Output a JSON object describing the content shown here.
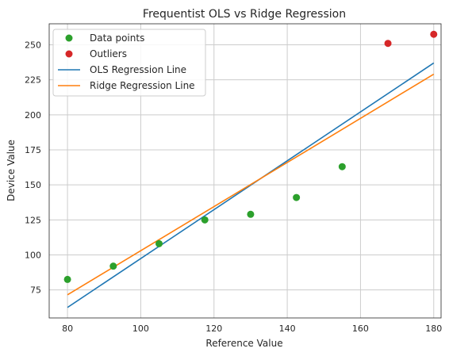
{
  "chart_data": {
    "type": "scatter",
    "title": "Frequentist OLS vs Ridge Regression",
    "xlabel": "Reference Value",
    "ylabel": "Device Value",
    "xlim": [
      75,
      182
    ],
    "ylim": [
      55,
      265
    ],
    "xticks": [
      80,
      100,
      120,
      140,
      160,
      180
    ],
    "yticks": [
      75,
      100,
      125,
      150,
      175,
      200,
      225,
      250
    ],
    "grid": true,
    "legend_position": "top-left",
    "series": [
      {
        "name": "Data points",
        "kind": "scatter",
        "color": "#2ca02c",
        "x": [
          80,
          92.5,
          105,
          117.5,
          130,
          142.5,
          155
        ],
        "y": [
          82.5,
          92,
          108,
          125,
          129,
          141,
          163
        ]
      },
      {
        "name": "Outliers",
        "kind": "scatter",
        "color": "#d62728",
        "x": [
          167.5,
          180
        ],
        "y": [
          251,
          257.5
        ]
      },
      {
        "name": "OLS Regression Line",
        "kind": "line",
        "color": "#1f77b4",
        "x": [
          80,
          180
        ],
        "y": [
          62.5,
          237
        ]
      },
      {
        "name": "Ridge Regression Line",
        "kind": "line",
        "color": "#ff7f0e",
        "x": [
          80,
          180
        ],
        "y": [
          71.5,
          229
        ]
      }
    ]
  }
}
